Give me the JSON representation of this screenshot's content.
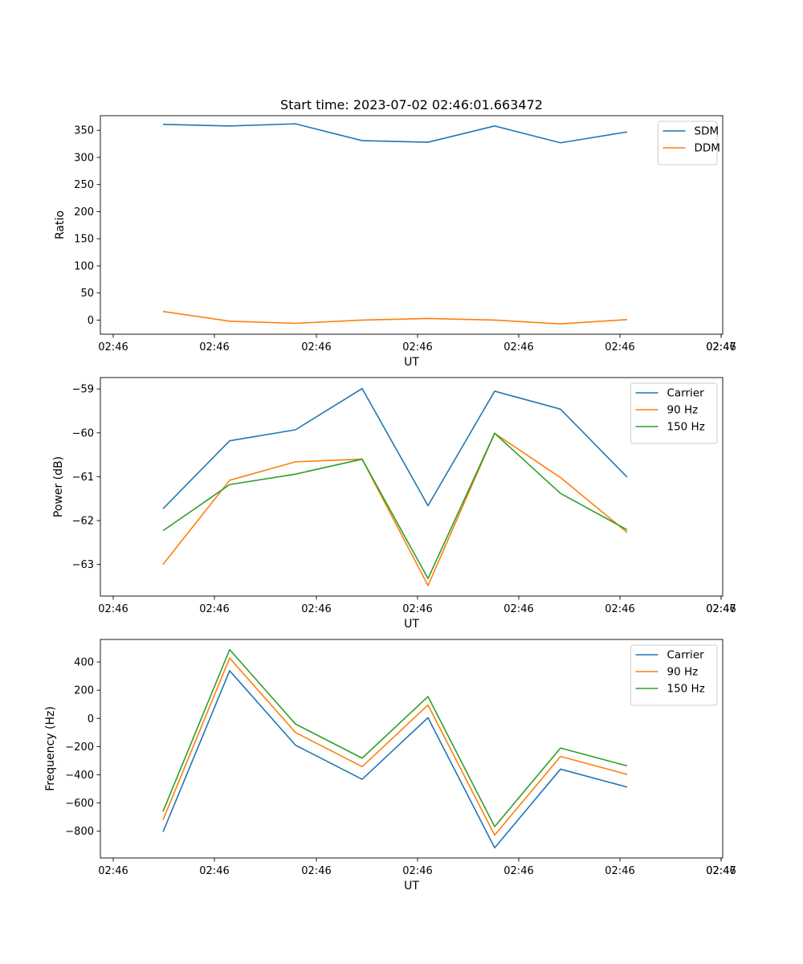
{
  "chart_data": [
    {
      "type": "line",
      "title": "Start time: 2023-07-02 02:46:01.663472",
      "xlabel": "UT",
      "ylabel": "Ratio",
      "xticks": [
        "02:46",
        "02:46",
        "02:46",
        "02:46",
        "02:46",
        "02:46",
        "02:46",
        "02:47"
      ],
      "ylim": [
        -26,
        377
      ],
      "yticks": [
        {
          "v": 0,
          "label": "0"
        },
        {
          "v": 50,
          "label": "50"
        },
        {
          "v": 100,
          "label": "100"
        },
        {
          "v": 150,
          "label": "150"
        },
        {
          "v": 200,
          "label": "200"
        },
        {
          "v": 250,
          "label": "250"
        },
        {
          "v": 300,
          "label": "300"
        },
        {
          "v": 350,
          "label": "350"
        }
      ],
      "legend": "top-right",
      "series": [
        {
          "name": "SDM",
          "color": "#1f77b4",
          "values": [
            361,
            358,
            362,
            331,
            328,
            358,
            327,
            347
          ]
        },
        {
          "name": "DDM",
          "color": "#ff7f0e",
          "values": [
            16,
            -2,
            -6,
            0,
            3,
            0,
            -7,
            1
          ]
        }
      ]
    },
    {
      "type": "line",
      "xlabel": "UT",
      "ylabel": "Power (dB)",
      "xticks": [
        "02:46",
        "02:46",
        "02:46",
        "02:46",
        "02:46",
        "02:46",
        "02:46",
        "02:47"
      ],
      "ylim": [
        -63.72,
        -58.74
      ],
      "yticks": [
        {
          "v": -63,
          "label": "−63"
        },
        {
          "v": -62,
          "label": "−62"
        },
        {
          "v": -61,
          "label": "−61"
        },
        {
          "v": -60,
          "label": "−60"
        },
        {
          "v": -59,
          "label": "−59"
        }
      ],
      "legend": "top-right",
      "series": [
        {
          "name": "Carrier",
          "color": "#1f77b4",
          "values": [
            -61.73,
            -60.18,
            -59.93,
            -58.99,
            -61.66,
            -59.05,
            -59.46,
            -61.01
          ]
        },
        {
          "name": "90 Hz",
          "color": "#ff7f0e",
          "values": [
            -63.0,
            -61.08,
            -60.66,
            -60.6,
            -63.48,
            -60.01,
            -61.02,
            -62.27
          ]
        },
        {
          "name": "150 Hz",
          "color": "#2ca02c",
          "values": [
            -62.23,
            -61.18,
            -60.94,
            -60.6,
            -63.32,
            -60.01,
            -61.38,
            -62.21
          ]
        }
      ]
    },
    {
      "type": "line",
      "xlabel": "UT",
      "ylabel": "Frequency (Hz)",
      "xticks": [
        "02:46",
        "02:46",
        "02:46",
        "02:46",
        "02:46",
        "02:46",
        "02:46",
        "02:47"
      ],
      "ylim": [
        -990,
        560
      ],
      "yticks": [
        {
          "v": -800,
          "label": "−800"
        },
        {
          "v": -600,
          "label": "−600"
        },
        {
          "v": -400,
          "label": "−400"
        },
        {
          "v": -200,
          "label": "−200"
        },
        {
          "v": 0,
          "label": "0"
        },
        {
          "v": 200,
          "label": "200"
        },
        {
          "v": 400,
          "label": "400"
        }
      ],
      "legend": "top-right",
      "series": [
        {
          "name": "Carrier",
          "color": "#1f77b4",
          "values": [
            -805,
            338,
            -190,
            -432,
            5,
            -918,
            -360,
            -487
          ]
        },
        {
          "name": "90 Hz",
          "color": "#ff7f0e",
          "values": [
            -720,
            428,
            -100,
            -342,
            95,
            -828,
            -270,
            -397
          ]
        },
        {
          "name": "150 Hz",
          "color": "#2ca02c",
          "values": [
            -660,
            488,
            -40,
            -282,
            155,
            -768,
            -210,
            -337
          ]
        }
      ]
    }
  ]
}
